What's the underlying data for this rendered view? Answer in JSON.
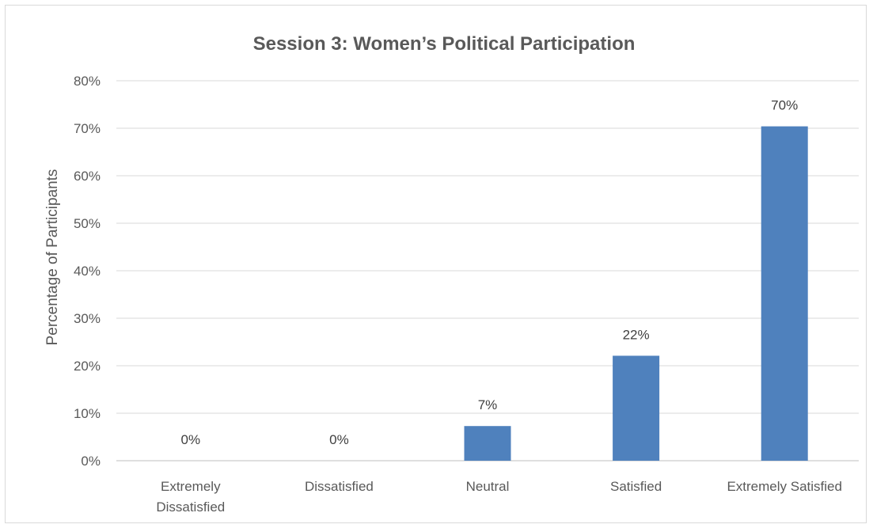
{
  "chart_data": {
    "type": "bar",
    "title": "Session 3: Women’s Political Participation",
    "ylabel": "Percentage of Participants",
    "xlabel": "",
    "categories": [
      [
        "Extremely",
        "Dissatisfied"
      ],
      [
        "Dissatisfied"
      ],
      [
        "Neutral"
      ],
      [
        "Satisfied"
      ],
      [
        "Extremely Satisfied"
      ]
    ],
    "values": [
      0,
      0,
      7.3,
      22.1,
      70.4
    ],
    "data_labels": [
      "0%",
      "0%",
      "7%",
      "22%",
      "70%"
    ],
    "ylim": [
      0,
      80
    ],
    "yticks": [
      0,
      10,
      20,
      30,
      40,
      50,
      60,
      70,
      80
    ],
    "ytick_labels": [
      "0%",
      "10%",
      "20%",
      "30%",
      "40%",
      "50%",
      "60%",
      "70%",
      "80%"
    ],
    "grid": true,
    "legend": "none",
    "bar_color": "#4f81bd"
  }
}
